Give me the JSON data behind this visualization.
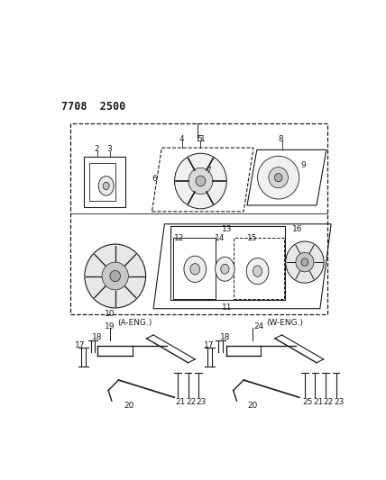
{
  "title": "7708  2500",
  "bg_color": "#ffffff",
  "line_color": "#1a1a1a",
  "fig_width": 4.28,
  "fig_height": 5.33,
  "dpi": 100
}
